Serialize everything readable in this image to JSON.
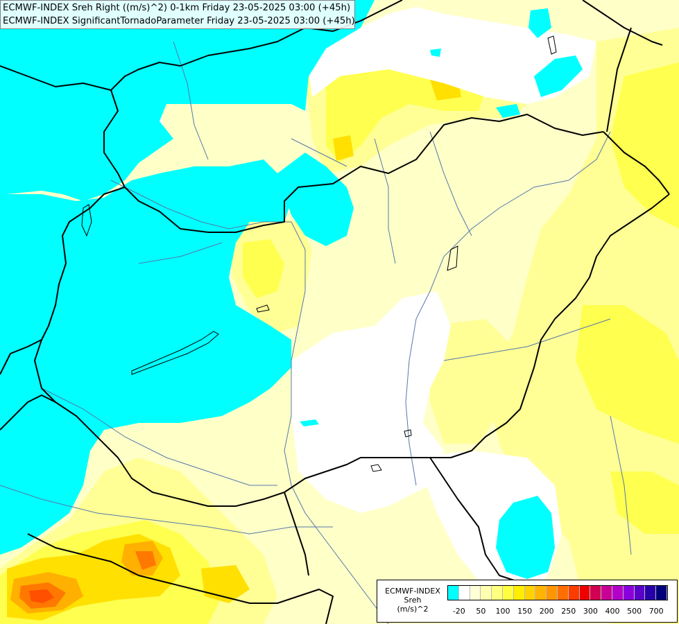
{
  "map": {
    "title_line1": "ECMWF-INDEX Sreh Right ((m/s)^2) 0-1km Friday 23-05-2025 03:00 (+45h)",
    "title_line2": "ECMWF-INDEX SignificantTornadoParameter Friday 23-05-2025 03:00 (+45h)"
  },
  "legend": {
    "title_lines": [
      "ECMWF-INDEX",
      "Sreh",
      "(m/s)^2"
    ],
    "colors": [
      "#00ffff",
      "#ffffff",
      "#ffffd8",
      "#ffffb0",
      "#ffff80",
      "#ffff40",
      "#ffee00",
      "#ffd200",
      "#ffb400",
      "#ff9600",
      "#ff6e00",
      "#ff3c00",
      "#ee0000",
      "#d20050",
      "#c80096",
      "#b400c8",
      "#8c00dc",
      "#5a00c8",
      "#2800aa",
      "#00007a"
    ],
    "tick_labels": [
      "-20",
      "50",
      "100",
      "150",
      "200",
      "250",
      "300",
      "400",
      "500",
      "700"
    ],
    "tick_index": [
      1,
      3,
      5,
      7,
      9,
      11,
      13,
      15,
      17,
      19
    ]
  },
  "colors": {
    "cyan": "#00ffff",
    "white": "#ffffff",
    "pale_yellow": "#ffffc8",
    "light_yellow": "#ffff96",
    "yellow": "#ffff50",
    "gold": "#ffe000",
    "orange": "#ffb000",
    "dark_orange": "#ff7800",
    "red_orange": "#ff5000",
    "border": "#000000",
    "river": "#5577aa"
  }
}
